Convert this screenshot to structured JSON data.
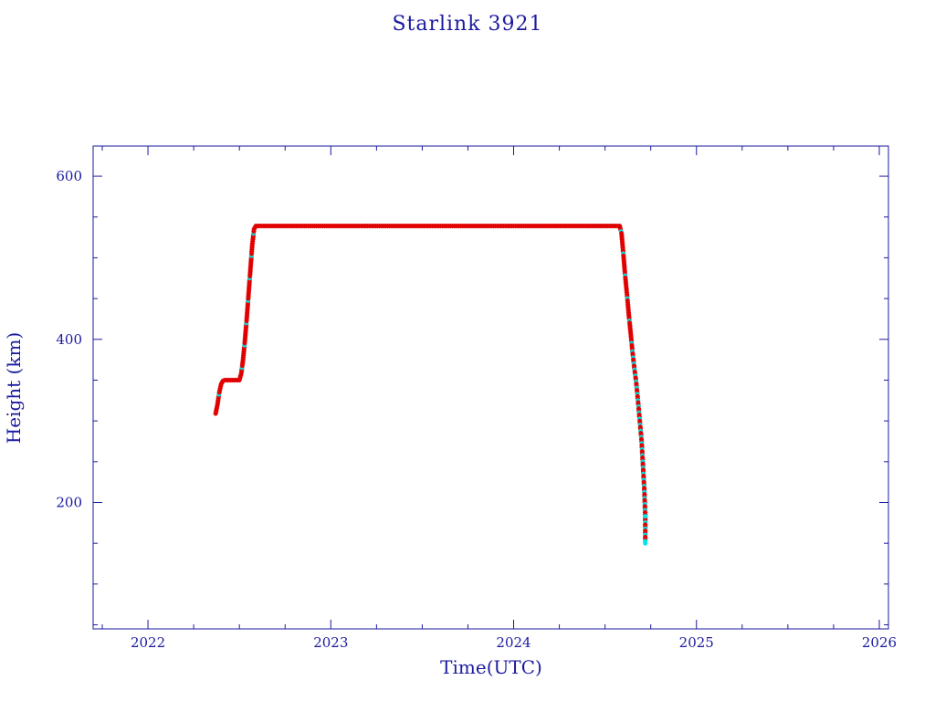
{
  "chart_data": {
    "type": "scatter",
    "title": "Starlink 3921",
    "xlabel": "Time(UTC)",
    "ylabel": "Height (km)",
    "xlim": [
      2021.7,
      2026.05
    ],
    "ylim": [
      45,
      637
    ],
    "xticks": [
      2022,
      2023,
      2024,
      2025,
      2026
    ],
    "yticks": [
      200,
      400,
      600
    ],
    "grid": false,
    "colors": {
      "axis": "#1a1aa0",
      "primary_marker": "#e00000",
      "secondary_marker": "#00e5e5",
      "line": "#1a1aa0"
    },
    "series": [
      {
        "values": [
          [
            2022.37,
            309
          ],
          [
            2022.38,
            320
          ],
          [
            2022.39,
            335
          ],
          [
            2022.4,
            345
          ],
          [
            2022.41,
            349
          ],
          [
            2022.42,
            350
          ],
          [
            2022.46,
            350
          ],
          [
            2022.5,
            350
          ],
          [
            2022.51,
            358
          ],
          [
            2022.52,
            375
          ],
          [
            2022.53,
            398
          ],
          [
            2022.54,
            425
          ],
          [
            2022.55,
            455
          ],
          [
            2022.56,
            485
          ],
          [
            2022.57,
            515
          ],
          [
            2022.58,
            535
          ],
          [
            2022.59,
            539
          ],
          [
            2022.7,
            539
          ],
          [
            2023.0,
            539
          ],
          [
            2023.3,
            539
          ],
          [
            2023.6,
            539
          ],
          [
            2023.9,
            539
          ],
          [
            2024.2,
            539
          ],
          [
            2024.45,
            539
          ],
          [
            2024.58,
            539
          ],
          [
            2024.59,
            530
          ],
          [
            2024.6,
            505
          ],
          [
            2024.61,
            478
          ],
          [
            2024.62,
            455
          ],
          [
            2024.63,
            430
          ],
          [
            2024.64,
            408
          ],
          [
            2024.65,
            385
          ],
          [
            2024.66,
            365
          ],
          [
            2024.67,
            348
          ],
          [
            2024.68,
            325
          ],
          [
            2024.69,
            300
          ],
          [
            2024.7,
            275
          ],
          [
            2024.705,
            255
          ],
          [
            2024.71,
            235
          ],
          [
            2024.715,
            215
          ],
          [
            2024.72,
            183
          ],
          [
            2024.72,
            150
          ]
        ]
      }
    ]
  }
}
